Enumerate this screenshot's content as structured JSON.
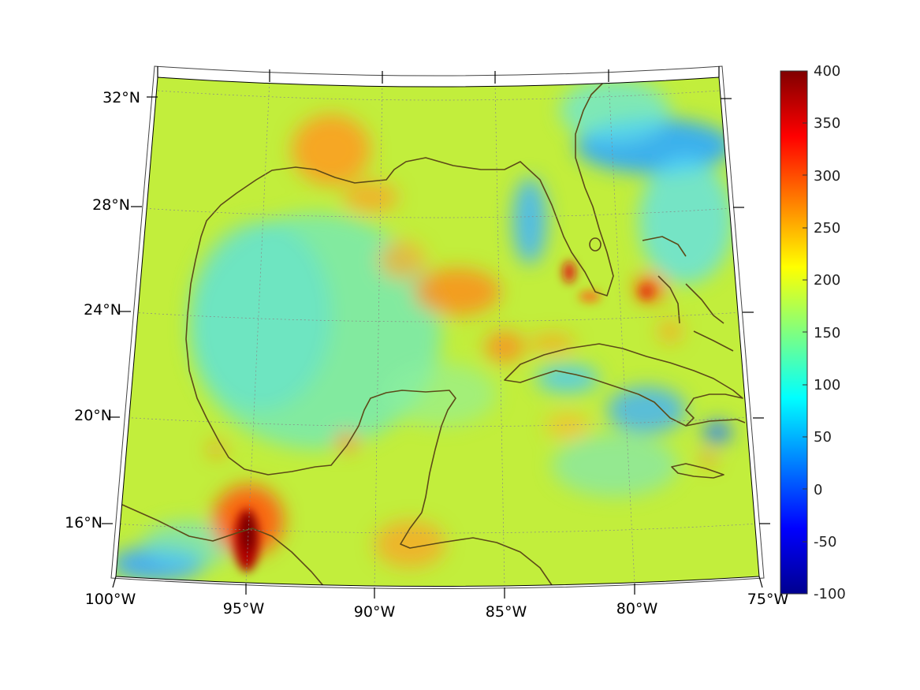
{
  "map": {
    "region": "Gulf of Mexico and Caribbean",
    "projection": "conic",
    "lat_ticks": [
      "32°N",
      "28°N",
      "24°N",
      "20°N",
      "16°N"
    ],
    "lon_ticks": [
      "100°W",
      "95°W",
      "90°W",
      "85°W",
      "80°W",
      "75°W"
    ],
    "grid": true,
    "coastline_color": "#5c4a18"
  },
  "colorbar": {
    "labels": [
      "400",
      "350",
      "300",
      "250",
      "200",
      "150",
      "100",
      "50",
      "0",
      "-50",
      "-100"
    ],
    "min": -100,
    "max": 400,
    "colormap": "jet"
  }
}
